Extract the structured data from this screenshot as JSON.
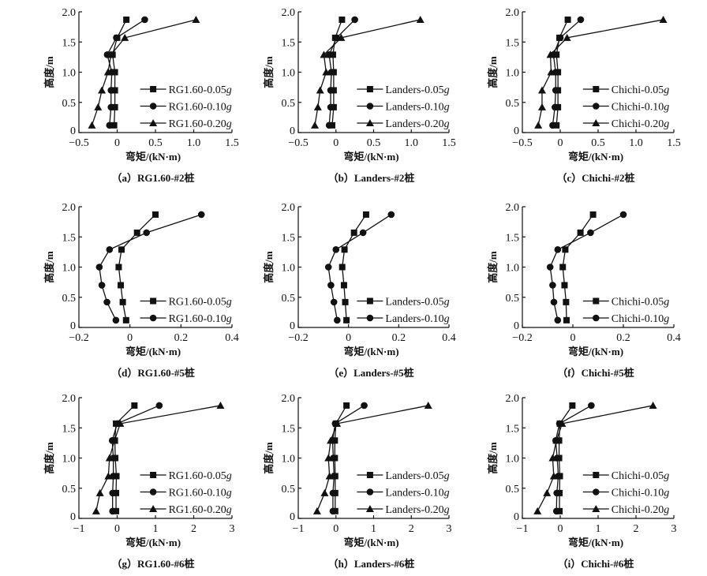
{
  "figure": {
    "y_axis_label": "高度/m",
    "x_axis_label": "弯矩/(kN·m)"
  },
  "chart_data": [
    {
      "id": "a",
      "type": "line",
      "caption": "（a）RG1.60-#2桩",
      "xlabel": "弯矩/(kN·m)",
      "ylabel": "高度/m",
      "xlim": [
        -0.5,
        1.5
      ],
      "xticks": [
        -0.5,
        0,
        0.5,
        1.0,
        1.5
      ],
      "xtick_labels": [
        "−0.5",
        "0",
        "0.5",
        "1.0",
        "1.5"
      ],
      "ylim": [
        0,
        2.0
      ],
      "yticks": [
        0,
        0.5,
        1.0,
        1.5,
        2.0
      ],
      "ytick_labels": [
        "0",
        "0.5",
        "1.0",
        "1.5",
        "2.0"
      ],
      "legend_position": "bottom-right",
      "y": [
        0.12,
        0.42,
        0.7,
        1.0,
        1.29,
        1.57,
        1.87
      ],
      "series": [
        {
          "name": "RG1.60-0.05",
          "suffix": "g",
          "marker": "square",
          "values": [
            -0.04,
            -0.03,
            -0.03,
            -0.03,
            -0.06,
            0.0,
            0.12
          ]
        },
        {
          "name": "RG1.60-0.10",
          "suffix": "g",
          "marker": "circle",
          "values": [
            -0.1,
            -0.08,
            -0.08,
            -0.07,
            -0.13,
            -0.01,
            0.36
          ]
        },
        {
          "name": "RG1.60-0.20",
          "suffix": "g",
          "marker": "triangle",
          "values": [
            -0.33,
            -0.25,
            -0.2,
            -0.12,
            -0.08,
            0.1,
            1.03
          ]
        }
      ]
    },
    {
      "id": "b",
      "type": "line",
      "caption": "（b）Landers-#2桩",
      "xlabel": "弯矩/(kN·m)",
      "ylabel": "高度/m",
      "xlim": [
        -0.5,
        1.5
      ],
      "xticks": [
        -0.5,
        0,
        0.5,
        1.0,
        1.5
      ],
      "xtick_labels": [
        "−0.5",
        "0",
        "0.5",
        "1.0",
        "1.5"
      ],
      "ylim": [
        0,
        2.0
      ],
      "yticks": [
        0,
        0.5,
        1.0,
        1.5,
        2.0
      ],
      "ytick_labels": [
        "0",
        "0.5",
        "1.0",
        "1.5",
        "2.0"
      ],
      "legend_position": "bottom-right",
      "y": [
        0.12,
        0.42,
        0.7,
        1.0,
        1.29,
        1.57,
        1.87
      ],
      "series": [
        {
          "name": "Landers-0.05",
          "suffix": "g",
          "marker": "square",
          "values": [
            -0.05,
            -0.03,
            -0.03,
            -0.03,
            -0.04,
            -0.01,
            0.08
          ]
        },
        {
          "name": "Landers-0.10",
          "suffix": "g",
          "marker": "circle",
          "values": [
            -0.09,
            -0.07,
            -0.07,
            -0.06,
            -0.09,
            0.01,
            0.25
          ]
        },
        {
          "name": "Landers-0.20",
          "suffix": "g",
          "marker": "triangle",
          "values": [
            -0.28,
            -0.24,
            -0.21,
            -0.13,
            -0.16,
            0.07,
            1.12
          ]
        }
      ]
    },
    {
      "id": "c",
      "type": "line",
      "caption": "（c）Chichi-#2桩",
      "xlabel": "弯矩/(kN·m)",
      "ylabel": "高度/m",
      "xlim": [
        -0.5,
        1.5
      ],
      "xticks": [
        -0.5,
        0,
        0.5,
        1.0,
        1.5
      ],
      "xtick_labels": [
        "−0.5",
        "0",
        "0.5",
        "1.0",
        "1.5"
      ],
      "ylim": [
        0,
        2.0
      ],
      "yticks": [
        0,
        0.5,
        1.0,
        1.5,
        2.0
      ],
      "ytick_labels": [
        "0",
        "0.5",
        "1.0",
        "1.5",
        "2.0"
      ],
      "legend_position": "bottom-right",
      "y": [
        0.12,
        0.42,
        0.7,
        1.0,
        1.29,
        1.57,
        1.87
      ],
      "series": [
        {
          "name": "Chichi-0.05",
          "suffix": "g",
          "marker": "square",
          "values": [
            -0.05,
            -0.03,
            -0.03,
            -0.03,
            -0.05,
            -0.01,
            0.1
          ]
        },
        {
          "name": "Chichi-0.10",
          "suffix": "g",
          "marker": "circle",
          "values": [
            -0.1,
            -0.07,
            -0.06,
            -0.06,
            -0.09,
            0.0,
            0.27
          ]
        },
        {
          "name": "Chichi-0.20",
          "suffix": "g",
          "marker": "triangle",
          "values": [
            -0.29,
            -0.24,
            -0.24,
            -0.12,
            -0.13,
            0.09,
            1.36
          ]
        }
      ]
    },
    {
      "id": "d",
      "type": "line",
      "caption": "（d）RG1.60-#5桩",
      "xlabel": "弯矩/(kN·m)",
      "ylabel": "高度/m",
      "xlim": [
        -0.2,
        0.4
      ],
      "xticks": [
        -0.2,
        0,
        0.2,
        0.4
      ],
      "xtick_labels": [
        "−0.2",
        "0",
        "0.2",
        "0.4"
      ],
      "ylim": [
        0,
        2.0
      ],
      "yticks": [
        0,
        0.5,
        1.0,
        1.5,
        2.0
      ],
      "ytick_labels": [
        "0",
        "0.5",
        "1.0",
        "1.5",
        "2.0"
      ],
      "legend_position": "bottom-right",
      "y": [
        0.12,
        0.42,
        0.7,
        1.0,
        1.29,
        1.57,
        1.87
      ],
      "series": [
        {
          "name": "RG1.60-0.05",
          "suffix": "g",
          "marker": "square",
          "values": [
            -0.015,
            -0.028,
            -0.036,
            -0.044,
            -0.033,
            0.028,
            0.1
          ]
        },
        {
          "name": "RG1.60-0.10",
          "suffix": "g",
          "marker": "circle",
          "values": [
            -0.055,
            -0.09,
            -0.11,
            -0.12,
            -0.08,
            0.065,
            0.28
          ]
        }
      ]
    },
    {
      "id": "e",
      "type": "line",
      "caption": "（e）Landers-#5桩",
      "xlabel": "弯矩/(kN·m)",
      "ylabel": "高度/m",
      "xlim": [
        -0.2,
        0.4
      ],
      "xticks": [
        -0.2,
        0,
        0.2,
        0.4
      ],
      "xtick_labels": [
        "−0.2",
        "0",
        "0.2",
        "0.4"
      ],
      "ylim": [
        0,
        2.0
      ],
      "yticks": [
        0,
        0.5,
        1.0,
        1.5,
        2.0
      ],
      "ytick_labels": [
        "0",
        "0.5",
        "1.0",
        "1.5",
        "2.0"
      ],
      "legend_position": "bottom-right",
      "y": [
        0.12,
        0.42,
        0.7,
        1.0,
        1.29,
        1.57,
        1.87
      ],
      "series": [
        {
          "name": "Landers-0.05",
          "suffix": "g",
          "marker": "square",
          "values": [
            -0.008,
            -0.013,
            -0.018,
            -0.025,
            -0.016,
            0.022,
            0.07
          ]
        },
        {
          "name": "Landers-0.10",
          "suffix": "g",
          "marker": "circle",
          "values": [
            -0.045,
            -0.058,
            -0.07,
            -0.08,
            -0.05,
            0.058,
            0.17
          ]
        }
      ]
    },
    {
      "id": "f",
      "type": "line",
      "caption": "（f）Chichi-#5桩",
      "xlabel": "弯矩/(kN·m)",
      "ylabel": "高度/m",
      "xlim": [
        -0.2,
        0.4
      ],
      "xticks": [
        -0.2,
        0,
        0.2,
        0.4
      ],
      "xtick_labels": [
        "−0.2",
        "0",
        "0.2",
        "0.4"
      ],
      "ylim": [
        0,
        2.0
      ],
      "yticks": [
        0,
        0.5,
        1.0,
        1.5,
        2.0
      ],
      "ytick_labels": [
        "0",
        "0.5",
        "1.0",
        "1.5",
        "2.0"
      ],
      "legend_position": "bottom-right",
      "y": [
        0.12,
        0.42,
        0.7,
        1.0,
        1.29,
        1.57,
        1.87
      ],
      "series": [
        {
          "name": "Chichi-0.05",
          "suffix": "g",
          "marker": "square",
          "values": [
            -0.025,
            -0.027,
            -0.033,
            -0.04,
            -0.03,
            0.03,
            0.08
          ]
        },
        {
          "name": "Chichi-0.10",
          "suffix": "g",
          "marker": "circle",
          "values": [
            -0.06,
            -0.075,
            -0.08,
            -0.09,
            -0.06,
            0.07,
            0.2
          ]
        }
      ]
    },
    {
      "id": "g",
      "type": "line",
      "caption": "（g）RG1.60-#6桩",
      "xlabel": "弯矩/(kN·m)",
      "ylabel": "高度/m",
      "xlim": [
        -1,
        3
      ],
      "xticks": [
        -1,
        0,
        1,
        2,
        3
      ],
      "xtick_labels": [
        "−1",
        "0",
        "1",
        "2",
        "3"
      ],
      "ylim": [
        0,
        2.0
      ],
      "yticks": [
        0,
        0.5,
        1.0,
        1.5,
        2.0
      ],
      "ytick_labels": [
        "0",
        "0.5",
        "1.0",
        "1.5",
        "2.0"
      ],
      "legend_position": "bottom-right",
      "y": [
        0.12,
        0.42,
        0.7,
        1.0,
        1.29,
        1.57,
        1.87
      ],
      "series": [
        {
          "name": "RG1.60-0.05",
          "suffix": "g",
          "marker": "square",
          "values": [
            -0.03,
            -0.03,
            -0.02,
            -0.05,
            -0.06,
            -0.03,
            0.45
          ]
        },
        {
          "name": "RG1.60-0.10",
          "suffix": "g",
          "marker": "circle",
          "values": [
            -0.12,
            -0.12,
            -0.1,
            -0.1,
            -0.13,
            0.0,
            1.1
          ]
        },
        {
          "name": "RG1.60-0.20",
          "suffix": "g",
          "marker": "triangle",
          "values": [
            -0.55,
            -0.45,
            -0.23,
            -0.2,
            -0.07,
            0.08,
            2.7
          ]
        }
      ]
    },
    {
      "id": "h",
      "type": "line",
      "caption": "（h）Landers-#6桩",
      "xlabel": "弯矩/(kN·m)",
      "ylabel": "高度/m",
      "xlim": [
        -1,
        3
      ],
      "xticks": [
        -1,
        0,
        1,
        2,
        3
      ],
      "xtick_labels": [
        "−1",
        "0",
        "1",
        "2",
        "3"
      ],
      "ylim": [
        0,
        2.0
      ],
      "yticks": [
        0,
        0.5,
        1.0,
        1.5,
        2.0
      ],
      "ytick_labels": [
        "0",
        "0.5",
        "1.0",
        "1.5",
        "2.0"
      ],
      "legend_position": "bottom-right",
      "y": [
        0.12,
        0.42,
        0.7,
        1.0,
        1.29,
        1.57,
        1.87
      ],
      "series": [
        {
          "name": "Landers-0.05",
          "suffix": "g",
          "marker": "square",
          "values": [
            -0.02,
            -0.02,
            -0.02,
            -0.03,
            -0.03,
            0.0,
            0.28
          ]
        },
        {
          "name": "Landers-0.10",
          "suffix": "g",
          "marker": "circle",
          "values": [
            -0.08,
            -0.08,
            -0.05,
            -0.07,
            -0.09,
            -0.02,
            0.75
          ]
        },
        {
          "name": "Landers-0.20",
          "suffix": "g",
          "marker": "triangle",
          "values": [
            -0.5,
            -0.3,
            -0.17,
            -0.2,
            -0.14,
            0.03,
            2.45
          ]
        }
      ]
    },
    {
      "id": "i",
      "type": "line",
      "caption": "（i）Chichi-#6桩",
      "xlabel": "弯矩/(kN·m)",
      "ylabel": "高度/m",
      "xlim": [
        -1,
        3
      ],
      "xticks": [
        -1,
        0,
        1,
        2,
        3
      ],
      "xtick_labels": [
        "−1",
        "0",
        "1",
        "2",
        "3"
      ],
      "ylim": [
        0,
        2.0
      ],
      "yticks": [
        0,
        0.5,
        1.0,
        1.5,
        2.0
      ],
      "ytick_labels": [
        "0",
        "0.5",
        "1.0",
        "1.5",
        "2.0"
      ],
      "legend_position": "bottom-right",
      "y": [
        0.12,
        0.42,
        0.7,
        1.0,
        1.29,
        1.57,
        1.87
      ],
      "series": [
        {
          "name": "Chichi-0.05",
          "suffix": "g",
          "marker": "square",
          "values": [
            -0.02,
            -0.02,
            -0.01,
            -0.03,
            -0.03,
            -0.01,
            0.32
          ]
        },
        {
          "name": "Chichi-0.10",
          "suffix": "g",
          "marker": "circle",
          "values": [
            -0.1,
            -0.09,
            -0.05,
            -0.08,
            -0.12,
            -0.02,
            0.82
          ]
        },
        {
          "name": "Chichi-0.20",
          "suffix": "g",
          "marker": "triangle",
          "values": [
            -0.6,
            -0.35,
            -0.17,
            -0.2,
            -0.1,
            0.05,
            2.45
          ]
        }
      ]
    }
  ]
}
